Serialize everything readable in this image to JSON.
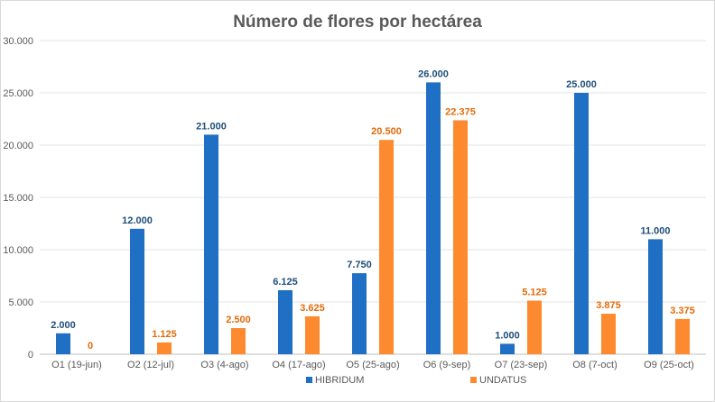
{
  "chart_data": {
    "type": "bar",
    "title": "Número de flores por hectárea",
    "categories": [
      "O1 (19-jun)",
      "O2 (12-jul)",
      "O3 (4-ago)",
      "O4 (17-ago)",
      "O5 (25-ago)",
      "O6 (9-sep)",
      "O7 (23-sep)",
      "O8 (7-oct)",
      "O9 (25-oct)"
    ],
    "series": [
      {
        "name": "HIBRIDUM",
        "color": "#1f6fc5",
        "label_color": "#1f4e79",
        "values": [
          2000,
          12000,
          21000,
          6125,
          7750,
          26000,
          1000,
          25000,
          11000
        ],
        "labels": [
          "2.000",
          "12.000",
          "21.000",
          "6.125",
          "7.750",
          "26.000",
          "1.000",
          "25.000",
          "11.000"
        ]
      },
      {
        "name": "UNDATUS",
        "color": "#fd8a2e",
        "label_color": "#e26b0a",
        "values": [
          0,
          1125,
          2500,
          3625,
          20500,
          22375,
          5125,
          3875,
          3375
        ],
        "labels": [
          "0",
          "1.125",
          "2.500",
          "3.625",
          "20.500",
          "22.375",
          "5.125",
          "3.875",
          "3.375"
        ]
      }
    ],
    "ylim": [
      0,
      30000
    ],
    "yticks": [
      0,
      5000,
      10000,
      15000,
      20000,
      25000,
      30000
    ],
    "ytick_labels": [
      "0",
      "5.000",
      "10.000",
      "15.000",
      "20.000",
      "25.000",
      "30.000"
    ],
    "xlabel": "",
    "ylabel": "",
    "grid": true,
    "legend_position": "bottom"
  }
}
